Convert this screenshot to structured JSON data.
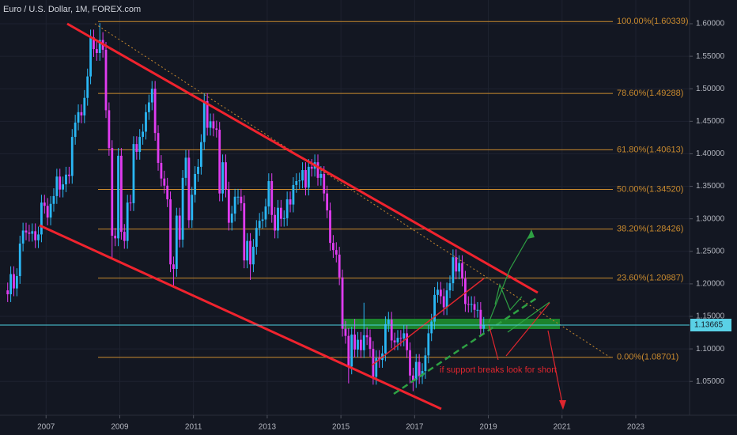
{
  "chart_data": {
    "type": "candlestick",
    "title": "Euro / U.S. Dollar, 1M, FOREX.com",
    "x": [
      "2005-12",
      "2006-01",
      "2006-02",
      "2006-03",
      "2006-04",
      "2006-05",
      "2006-06",
      "2006-07",
      "2006-08",
      "2006-09",
      "2006-10",
      "2006-11",
      "2006-12",
      "2007-01",
      "2007-02",
      "2007-03",
      "2007-04",
      "2007-05",
      "2007-06",
      "2007-07",
      "2007-08",
      "2007-09",
      "2007-10",
      "2007-11",
      "2007-12",
      "2008-01",
      "2008-02",
      "2008-03",
      "2008-04",
      "2008-05",
      "2008-06",
      "2008-07",
      "2008-08",
      "2008-09",
      "2008-10",
      "2008-11",
      "2008-12",
      "2009-01",
      "2009-02",
      "2009-03",
      "2009-04",
      "2009-05",
      "2009-06",
      "2009-07",
      "2009-08",
      "2009-09",
      "2009-10",
      "2009-11",
      "2009-12",
      "2010-01",
      "2010-02",
      "2010-03",
      "2010-04",
      "2010-05",
      "2010-06",
      "2010-07",
      "2010-08",
      "2010-09",
      "2010-10",
      "2010-11",
      "2010-12",
      "2011-01",
      "2011-02",
      "2011-03",
      "2011-04",
      "2011-05",
      "2011-06",
      "2011-07",
      "2011-08",
      "2011-09",
      "2011-10",
      "2011-11",
      "2011-12",
      "2012-01",
      "2012-02",
      "2012-03",
      "2012-04",
      "2012-05",
      "2012-06",
      "2012-07",
      "2012-08",
      "2012-09",
      "2012-10",
      "2012-11",
      "2012-12",
      "2013-01",
      "2013-02",
      "2013-03",
      "2013-04",
      "2013-05",
      "2013-06",
      "2013-07",
      "2013-08",
      "2013-09",
      "2013-10",
      "2013-11",
      "2013-12",
      "2014-01",
      "2014-02",
      "2014-03",
      "2014-04",
      "2014-05",
      "2014-06",
      "2014-07",
      "2014-08",
      "2014-09",
      "2014-10",
      "2014-11",
      "2014-12",
      "2015-01",
      "2015-02",
      "2015-03",
      "2015-04",
      "2015-05",
      "2015-06",
      "2015-07",
      "2015-08",
      "2015-09",
      "2015-10",
      "2015-11",
      "2015-12",
      "2016-01",
      "2016-02",
      "2016-03",
      "2016-04",
      "2016-05",
      "2016-06",
      "2016-07",
      "2016-08",
      "2016-09",
      "2016-10",
      "2016-11",
      "2016-12",
      "2017-01",
      "2017-02",
      "2017-03",
      "2017-04",
      "2017-05",
      "2017-06",
      "2017-07",
      "2017-08",
      "2017-09",
      "2017-10",
      "2017-11",
      "2017-12",
      "2018-01",
      "2018-02",
      "2018-03",
      "2018-04",
      "2018-05",
      "2018-06",
      "2018-07",
      "2018-08",
      "2018-09",
      "2018-10",
      "2018-11"
    ],
    "open": [
      1.19,
      1.184,
      1.215,
      1.193,
      1.212,
      1.262,
      1.282,
      1.279,
      1.277,
      1.281,
      1.267,
      1.276,
      1.325,
      1.32,
      1.302,
      1.323,
      1.335,
      1.365,
      1.345,
      1.353,
      1.368,
      1.366,
      1.426,
      1.448,
      1.464,
      1.459,
      1.486,
      1.519,
      1.579,
      1.561,
      1.555,
      1.575,
      1.56,
      1.467,
      1.409,
      1.274,
      1.27,
      1.397,
      1.28,
      1.266,
      1.325,
      1.324,
      1.415,
      1.403,
      1.426,
      1.434,
      1.464,
      1.479,
      1.5,
      1.432,
      1.386,
      1.362,
      1.351,
      1.33,
      1.23,
      1.223,
      1.305,
      1.268,
      1.363,
      1.394,
      1.298,
      1.337,
      1.369,
      1.38,
      1.418,
      1.481,
      1.44,
      1.45,
      1.439,
      1.437,
      1.339,
      1.387,
      1.345,
      1.294,
      1.308,
      1.334,
      1.334,
      1.324,
      1.236,
      1.266,
      1.23,
      1.257,
      1.286,
      1.297,
      1.299,
      1.319,
      1.358,
      1.306,
      1.282,
      1.317,
      1.3,
      1.301,
      1.33,
      1.322,
      1.352,
      1.358,
      1.359,
      1.375,
      1.348,
      1.38,
      1.377,
      1.387,
      1.363,
      1.369,
      1.339,
      1.313,
      1.263,
      1.252,
      1.245,
      1.21,
      1.131,
      1.12,
      1.073,
      1.122,
      1.099,
      1.114,
      1.098,
      1.121,
      1.118,
      1.1,
      1.057,
      1.086,
      1.083,
      1.093,
      1.138,
      1.145,
      1.113,
      1.11,
      1.117,
      1.116,
      1.124,
      1.098,
      1.059,
      1.052,
      1.08,
      1.058,
      1.066,
      1.09,
      1.124,
      1.142,
      1.183,
      1.191,
      1.181,
      1.164,
      1.19,
      1.201,
      1.241,
      1.219,
      1.232,
      1.208,
      1.169,
      1.168,
      1.169,
      1.16,
      1.16,
      1.131
    ],
    "high": [
      1.202,
      1.227,
      1.227,
      1.224,
      1.274,
      1.294,
      1.294,
      1.291,
      1.293,
      1.293,
      1.288,
      1.337,
      1.337,
      1.332,
      1.335,
      1.347,
      1.377,
      1.377,
      1.365,
      1.38,
      1.38,
      1.438,
      1.46,
      1.476,
      1.476,
      1.498,
      1.531,
      1.591,
      1.591,
      1.573,
      1.601,
      1.587,
      1.572,
      1.479,
      1.421,
      1.286,
      1.409,
      1.409,
      1.292,
      1.337,
      1.337,
      1.427,
      1.427,
      1.438,
      1.446,
      1.476,
      1.491,
      1.512,
      1.512,
      1.444,
      1.398,
      1.374,
      1.363,
      1.342,
      1.242,
      1.317,
      1.317,
      1.375,
      1.406,
      1.406,
      1.349,
      1.381,
      1.392,
      1.43,
      1.493,
      1.493,
      1.462,
      1.462,
      1.451,
      1.449,
      1.399,
      1.399,
      1.357,
      1.32,
      1.346,
      1.346,
      1.346,
      1.336,
      1.278,
      1.278,
      1.269,
      1.298,
      1.309,
      1.311,
      1.331,
      1.37,
      1.37,
      1.318,
      1.329,
      1.329,
      1.313,
      1.342,
      1.342,
      1.364,
      1.37,
      1.371,
      1.387,
      1.387,
      1.392,
      1.392,
      1.399,
      1.399,
      1.381,
      1.381,
      1.351,
      1.325,
      1.275,
      1.264,
      1.257,
      1.222,
      1.143,
      1.132,
      1.134,
      1.146,
      1.126,
      1.126,
      1.171,
      1.133,
      1.13,
      1.112,
      1.098,
      1.098,
      1.105,
      1.15,
      1.157,
      1.157,
      1.125,
      1.129,
      1.129,
      1.136,
      1.136,
      1.11,
      1.071,
      1.092,
      1.092,
      1.078,
      1.102,
      1.136,
      1.154,
      1.195,
      1.203,
      1.203,
      1.193,
      1.202,
      1.213,
      1.253,
      1.253,
      1.244,
      1.244,
      1.22,
      1.181,
      1.181,
      1.181,
      1.172,
      1.172,
      1.149
    ],
    "low": [
      1.172,
      1.172,
      1.181,
      1.181,
      1.2,
      1.25,
      1.267,
      1.265,
      1.265,
      1.255,
      1.255,
      1.264,
      1.308,
      1.29,
      1.29,
      1.311,
      1.323,
      1.333,
      1.333,
      1.341,
      1.354,
      1.354,
      1.414,
      1.436,
      1.447,
      1.447,
      1.474,
      1.507,
      1.549,
      1.543,
      1.543,
      1.548,
      1.455,
      1.397,
      1.24,
      1.258,
      1.258,
      1.268,
      1.254,
      1.254,
      1.312,
      1.312,
      1.391,
      1.391,
      1.414,
      1.422,
      1.452,
      1.467,
      1.42,
      1.374,
      1.35,
      1.339,
      1.318,
      1.218,
      1.195,
      1.211,
      1.256,
      1.256,
      1.351,
      1.286,
      1.286,
      1.325,
      1.357,
      1.368,
      1.406,
      1.428,
      1.428,
      1.427,
      1.425,
      1.327,
      1.327,
      1.333,
      1.282,
      1.282,
      1.296,
      1.322,
      1.312,
      1.224,
      1.224,
      1.206,
      1.218,
      1.245,
      1.274,
      1.285,
      1.287,
      1.307,
      1.294,
      1.27,
      1.27,
      1.288,
      1.288,
      1.289,
      1.31,
      1.31,
      1.34,
      1.346,
      1.347,
      1.336,
      1.336,
      1.365,
      1.365,
      1.351,
      1.351,
      1.327,
      1.301,
      1.251,
      1.24,
      1.233,
      1.198,
      1.119,
      1.108,
      1.047,
      1.061,
      1.087,
      1.087,
      1.086,
      1.086,
      1.106,
      1.088,
      1.045,
      1.045,
      1.071,
      1.071,
      1.081,
      1.126,
      1.101,
      1.098,
      1.098,
      1.104,
      1.104,
      1.086,
      1.047,
      1.035,
      1.04,
      1.046,
      1.046,
      1.054,
      1.078,
      1.112,
      1.13,
      1.171,
      1.169,
      1.152,
      1.152,
      1.178,
      1.189,
      1.207,
      1.207,
      1.196,
      1.157,
      1.156,
      1.156,
      1.148,
      1.148,
      1.119,
      1.125
    ],
    "close": [
      1.184,
      1.215,
      1.193,
      1.212,
      1.262,
      1.282,
      1.279,
      1.277,
      1.281,
      1.267,
      1.276,
      1.325,
      1.32,
      1.302,
      1.323,
      1.335,
      1.365,
      1.345,
      1.353,
      1.368,
      1.366,
      1.426,
      1.448,
      1.464,
      1.459,
      1.486,
      1.519,
      1.579,
      1.561,
      1.555,
      1.575,
      1.56,
      1.467,
      1.409,
      1.274,
      1.27,
      1.397,
      1.28,
      1.266,
      1.325,
      1.324,
      1.415,
      1.403,
      1.426,
      1.434,
      1.464,
      1.479,
      1.5,
      1.432,
      1.386,
      1.362,
      1.351,
      1.33,
      1.23,
      1.223,
      1.305,
      1.268,
      1.363,
      1.394,
      1.298,
      1.337,
      1.369,
      1.38,
      1.418,
      1.481,
      1.44,
      1.45,
      1.439,
      1.437,
      1.339,
      1.387,
      1.345,
      1.294,
      1.308,
      1.334,
      1.334,
      1.324,
      1.236,
      1.266,
      1.23,
      1.257,
      1.286,
      1.297,
      1.299,
      1.319,
      1.358,
      1.306,
      1.282,
      1.317,
      1.3,
      1.301,
      1.33,
      1.322,
      1.352,
      1.358,
      1.359,
      1.375,
      1.348,
      1.38,
      1.377,
      1.387,
      1.363,
      1.369,
      1.339,
      1.313,
      1.263,
      1.252,
      1.245,
      1.21,
      1.131,
      1.12,
      1.073,
      1.122,
      1.099,
      1.114,
      1.098,
      1.121,
      1.118,
      1.1,
      1.057,
      1.086,
      1.083,
      1.093,
      1.138,
      1.145,
      1.113,
      1.11,
      1.117,
      1.116,
      1.124,
      1.098,
      1.059,
      1.052,
      1.08,
      1.058,
      1.066,
      1.09,
      1.124,
      1.142,
      1.183,
      1.191,
      1.181,
      1.164,
      1.19,
      1.201,
      1.241,
      1.219,
      1.232,
      1.208,
      1.169,
      1.168,
      1.169,
      1.16,
      1.16,
      1.131,
      1.137
    ],
    "up_color": "#2ab7f5",
    "down_color": "#e03cf0",
    "xlim": [
      "2005-10",
      "2024-06"
    ],
    "xticks": [
      2007,
      2009,
      2011,
      2013,
      2015,
      2017,
      2019,
      2021,
      2023
    ],
    "ylim": [
      0.998,
      1.6365
    ],
    "yticks": [
      {
        "value": 1.05,
        "label": "1.05000"
      },
      {
        "value": 1.1,
        "label": "1.10000"
      },
      {
        "value": 1.15,
        "label": "1.15000"
      },
      {
        "value": 1.2,
        "label": "1.20000"
      },
      {
        "value": 1.25,
        "label": "1.25000"
      },
      {
        "value": 1.3,
        "label": "1.30000"
      },
      {
        "value": 1.35,
        "label": "1.35000"
      },
      {
        "value": 1.4,
        "label": "1.40000"
      },
      {
        "value": 1.45,
        "label": "1.45000"
      },
      {
        "value": 1.5,
        "label": "1.50000"
      },
      {
        "value": 1.55,
        "label": "1.55000"
      },
      {
        "value": 1.6,
        "label": "1.60000"
      }
    ],
    "grid": true,
    "fib_levels": [
      {
        "value": 1.60339,
        "label": "100.00%(1.60339)"
      },
      {
        "value": 1.49288,
        "label": "78.60%(1.49288)"
      },
      {
        "value": 1.40613,
        "label": "61.80%(1.40613)"
      },
      {
        "value": 1.3452,
        "label": "50.00%(1.34520)"
      },
      {
        "value": 1.28426,
        "label": "38.20%(1.28426)"
      },
      {
        "value": 1.20887,
        "label": "23.60%(1.20887)"
      },
      {
        "value": 1.08701,
        "label": "0.00%(1.08701)"
      }
    ],
    "fib_color": "#c98a2e",
    "last_price": 1.13665,
    "annotation": "if support breaks look for short"
  }
}
